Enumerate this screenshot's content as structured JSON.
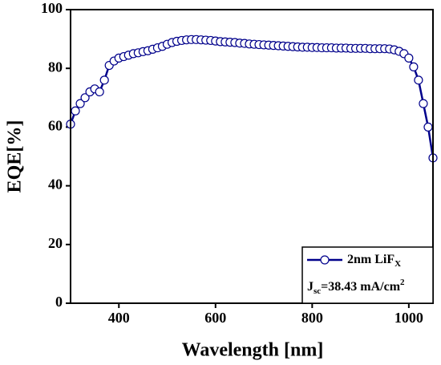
{
  "chart_data": {
    "type": "line",
    "x_label": "Wavelength [nm]",
    "y_label": "EQE[%]",
    "x": [
      300,
      310,
      320,
      330,
      340,
      350,
      360,
      370,
      380,
      390,
      400,
      410,
      420,
      430,
      440,
      450,
      460,
      470,
      480,
      490,
      500,
      510,
      520,
      530,
      540,
      550,
      560,
      570,
      580,
      590,
      600,
      610,
      620,
      630,
      640,
      650,
      660,
      670,
      680,
      690,
      700,
      710,
      720,
      730,
      740,
      750,
      760,
      770,
      780,
      790,
      800,
      810,
      820,
      830,
      840,
      850,
      860,
      870,
      880,
      890,
      900,
      910,
      920,
      930,
      940,
      950,
      960,
      970,
      980,
      990,
      1000,
      1010,
      1020,
      1030,
      1040,
      1050
    ],
    "series": [
      {
        "name": "2nm LiF",
        "name_sub": "X",
        "color": "#00008b",
        "values": [
          61,
          65.5,
          68,
          70,
          72,
          73,
          72,
          76,
          81,
          82.5,
          83.5,
          84,
          84.5,
          85,
          85.3,
          85.7,
          86,
          86.5,
          87,
          87.5,
          88.2,
          88.8,
          89.2,
          89.5,
          89.7,
          89.8,
          89.8,
          89.7,
          89.6,
          89.5,
          89.3,
          89.1,
          89,
          88.9,
          88.8,
          88.6,
          88.5,
          88.3,
          88.2,
          88.1,
          88,
          87.9,
          87.8,
          87.7,
          87.6,
          87.5,
          87.4,
          87.3,
          87.2,
          87.2,
          87.1,
          87.1,
          87,
          87,
          87,
          86.9,
          86.9,
          86.9,
          86.8,
          86.8,
          86.8,
          86.8,
          86.7,
          86.7,
          86.7,
          86.7,
          86.6,
          86.3,
          85.8,
          85,
          83.5,
          80.5,
          76,
          68,
          60,
          49.5
        ]
      }
    ],
    "annotation": {
      "main": "J",
      "sub": "sc",
      "rest": "=38.43 mA/cm",
      "sup": "2"
    },
    "xlim": [
      300,
      1050
    ],
    "xticks": [
      400,
      600,
      800,
      1000
    ],
    "ylim": [
      0,
      100
    ],
    "yticks": [
      0,
      20,
      40,
      60,
      80,
      100
    ],
    "legend": "lower right"
  }
}
